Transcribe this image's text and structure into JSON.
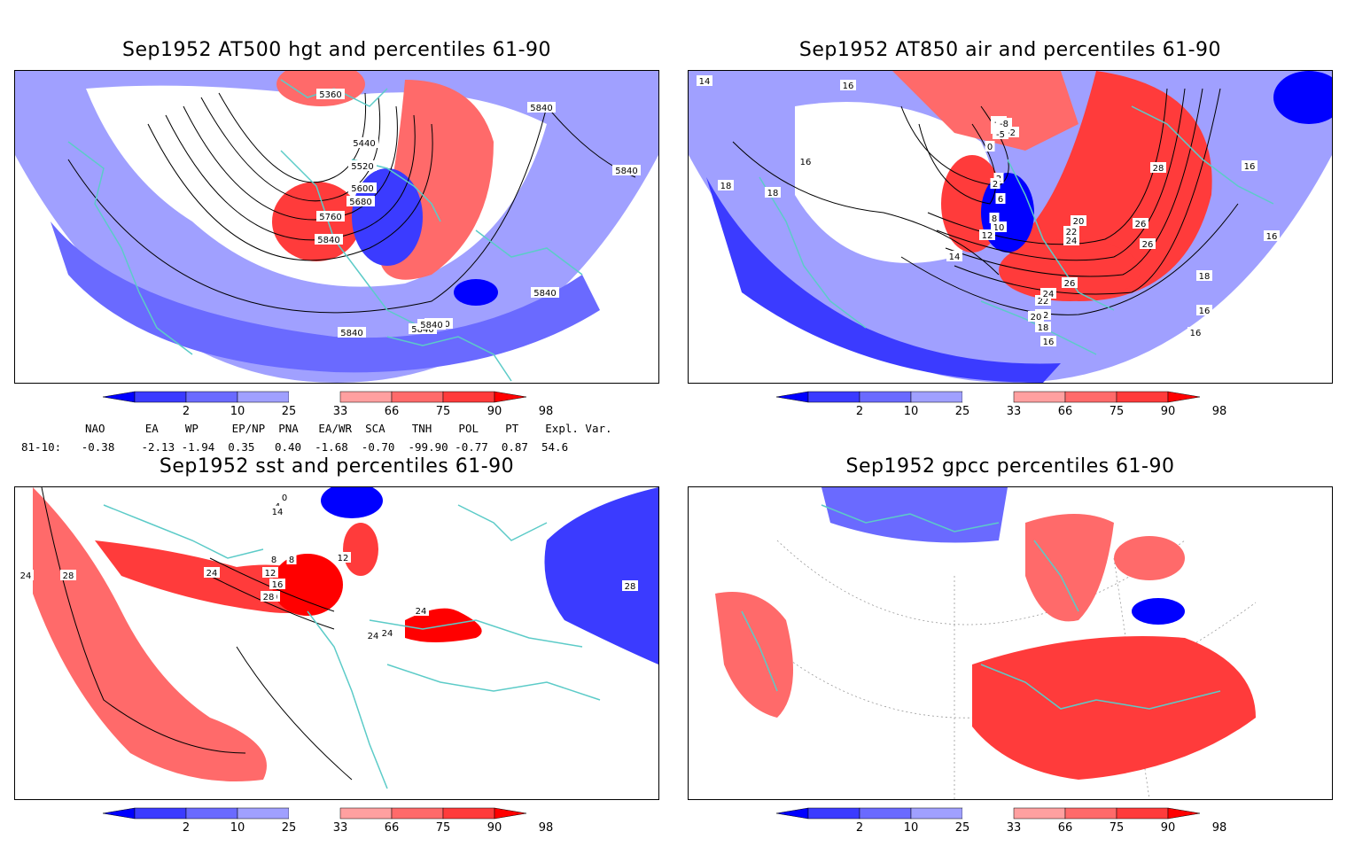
{
  "panels": {
    "tl": {
      "title": "Sep1952 AT500 hgt and percentiles 61-90",
      "contour_labels": [
        "5360",
        "5440",
        "5520",
        "5600",
        "5680",
        "5760",
        "5840",
        "5840",
        "5840",
        "5840",
        "5840",
        "5840",
        "5840",
        "5840"
      ]
    },
    "tr": {
      "title": "Sep1952 AT850 air and percentiles 61-90",
      "contour_labels": [
        "14",
        "16",
        "16",
        "16",
        "16",
        "18",
        "18",
        "18",
        "-4",
        "-2",
        "0",
        "2",
        "2",
        "6",
        "8",
        "10",
        "12",
        "14",
        "20",
        "22",
        "24",
        "26",
        "26",
        "26",
        "28",
        "22",
        "24",
        "22",
        "20",
        "18",
        "16",
        "16",
        "16",
        "-6",
        "-5",
        "-8"
      ]
    },
    "bl": {
      "title": "Sep1952 sst and percentiles 61-90",
      "contour_labels": [
        "24",
        "28",
        "24",
        "8",
        "12",
        "16",
        "20",
        "24",
        "28",
        "8",
        "12",
        "24",
        "24",
        "24",
        "28",
        "0",
        "4",
        "14"
      ]
    },
    "br": {
      "title": "Sep1952 gpcc percentiles 61-90"
    }
  },
  "colorbar": {
    "ticks": [
      "2",
      "10",
      "25",
      "33",
      "66",
      "75",
      "90",
      "98"
    ],
    "colors": [
      "#0000ff",
      "#3b3bff",
      "#6a6aff",
      "#a0a0ff",
      "#ffffff",
      "#ffa0a0",
      "#ff6a6a",
      "#ff3b3b",
      "#ff0000"
    ]
  },
  "indices": {
    "row_label": "81-10:",
    "names": [
      "NAO",
      "EA",
      "WP",
      "EP/NP",
      "PNA",
      "EA/WR",
      "SCA",
      "TNH",
      "POL",
      "PT",
      "Expl. Var."
    ],
    "values": [
      "-0.38",
      "-2.13",
      "-1.94",
      "0.35",
      "0.40",
      "-1.68",
      "-0.70",
      "-99.90",
      "-0.77",
      "0.87",
      "54.6"
    ]
  }
}
